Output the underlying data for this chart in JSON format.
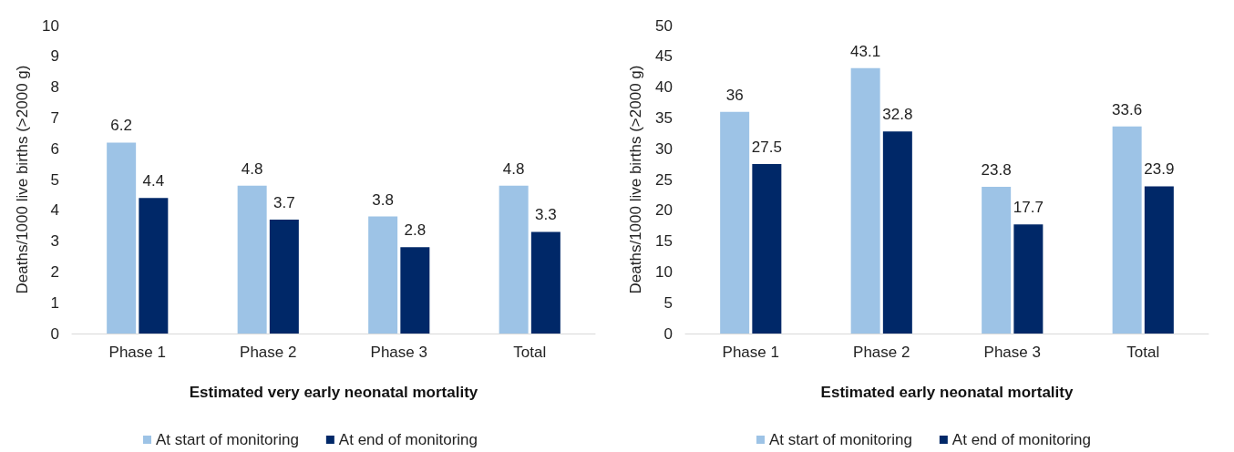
{
  "chart_data": [
    {
      "type": "bar",
      "xlabel": "Estimated very early neonatal mortality",
      "ylabel": "Deaths/1000 live births (>2000 g)",
      "categories": [
        "Phase 1",
        "Phase 2",
        "Phase 3",
        "Total"
      ],
      "series": [
        {
          "name": "At start of monitoring",
          "color": "#9dc3e6",
          "values": [
            6.2,
            4.8,
            3.8,
            4.8
          ]
        },
        {
          "name": "At end of monitoring",
          "color": "#002868",
          "values": [
            4.4,
            3.7,
            2.8,
            3.3
          ]
        }
      ],
      "ylim": [
        0,
        10
      ],
      "yticks": [
        0,
        1,
        2,
        3,
        4,
        5,
        6,
        7,
        8,
        9,
        10
      ],
      "grid": false,
      "legend": "bottom",
      "data_labels": true
    },
    {
      "type": "bar",
      "xlabel": "Estimated early neonatal mortality",
      "ylabel": "Deaths/1000 live births (>2000 g)",
      "categories": [
        "Phase 1",
        "Phase 2",
        "Phase 3",
        "Total"
      ],
      "series": [
        {
          "name": "At start of monitoring",
          "color": "#9dc3e6",
          "values": [
            36,
            43.1,
            23.8,
            33.6
          ]
        },
        {
          "name": "At end of monitoring",
          "color": "#002868",
          "values": [
            27.5,
            32.8,
            17.7,
            23.9
          ]
        }
      ],
      "ylim": [
        0,
        50
      ],
      "yticks": [
        0,
        5,
        10,
        15,
        20,
        25,
        30,
        35,
        40,
        45,
        50
      ],
      "grid": false,
      "legend": "bottom",
      "data_labels": true
    }
  ]
}
